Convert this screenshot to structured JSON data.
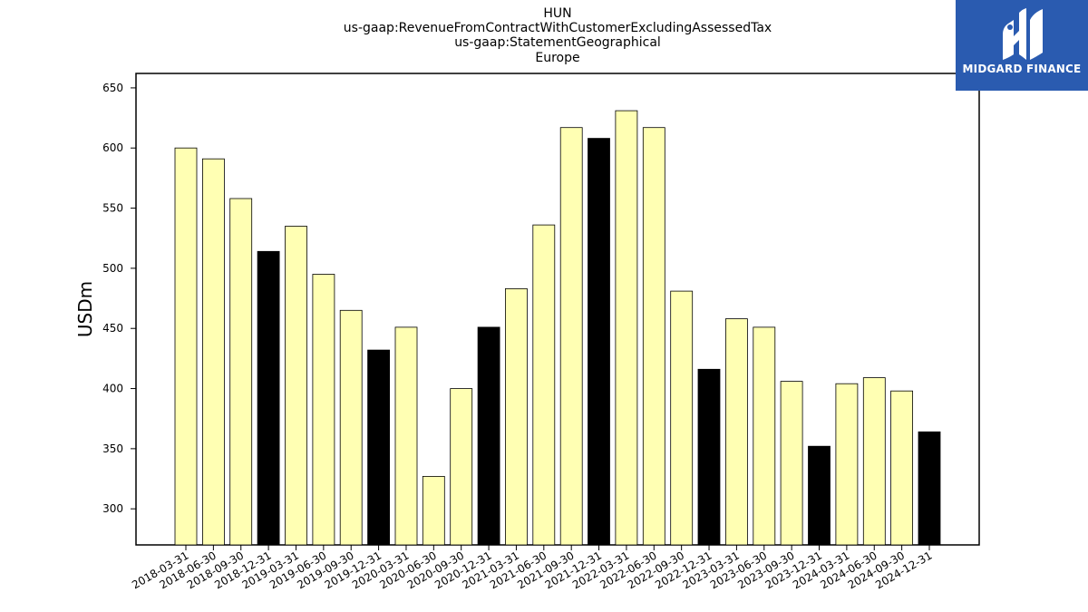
{
  "chart_data": {
    "type": "bar",
    "title_lines": [
      "HUN",
      "us-gaap:RevenueFromContractWithCustomerExcludingAssessedTax",
      "us-gaap:StatementGeographical",
      "Europe"
    ],
    "ylabel": "USDm",
    "xlabel": "",
    "ylim": [
      270,
      662
    ],
    "yticks": [
      300,
      350,
      400,
      450,
      500,
      550,
      600,
      650
    ],
    "categories": [
      "2018-03-31",
      "2018-06-30",
      "2018-09-30",
      "2018-12-31",
      "2019-03-31",
      "2019-06-30",
      "2019-09-30",
      "2019-12-31",
      "2020-03-31",
      "2020-06-30",
      "2020-09-30",
      "2020-12-31",
      "2021-03-31",
      "2021-06-30",
      "2021-09-30",
      "2021-12-31",
      "2022-03-31",
      "2022-06-30",
      "2022-09-30",
      "2022-12-31",
      "2023-03-31",
      "2023-06-30",
      "2023-09-30",
      "2023-12-31",
      "2024-03-31",
      "2024-06-30",
      "2024-09-30",
      "2024-12-31"
    ],
    "values": [
      600,
      591,
      558,
      514,
      535,
      495,
      465,
      432,
      451,
      327,
      400,
      451,
      483,
      536,
      617,
      608,
      631,
      617,
      481,
      416,
      458,
      451,
      406,
      352,
      404,
      409,
      398,
      364
    ],
    "bar_colors": {
      "quarter": "#ffffb3",
      "year_end": "#000000",
      "edge": "#000000"
    },
    "grid": false,
    "legend": "none"
  },
  "logo": {
    "text": "MIDGARD FINANCE",
    "background": "#2a5bb0",
    "icon": "midgard-m-icon"
  }
}
